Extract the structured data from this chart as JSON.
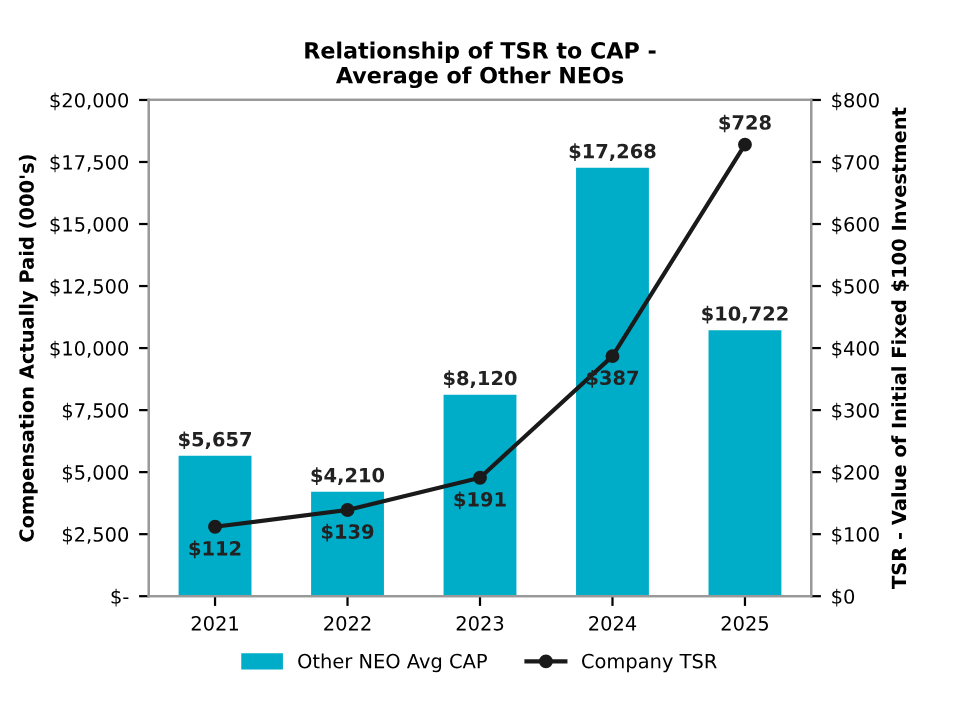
{
  "chart_data": {
    "type": "bar",
    "title": "Relationship of TSR to CAP -\nAverage of Other NEOs",
    "ylabel": "Compensation Actually Paid (000's)",
    "y2label": "TSR - Value of Initial Fixed $100 Investment",
    "categories": [
      "2021",
      "2022",
      "2023",
      "2024",
      "2025"
    ],
    "series": [
      {
        "name": "Other NEO Avg CAP",
        "color": "#00adc9",
        "values": [
          5657,
          4210,
          8120,
          17268,
          10722
        ],
        "value_labels": [
          "$5,657",
          "$4,210",
          "$8,120",
          "$17,268",
          "$10,722"
        ]
      },
      {
        "name": "Company TSR",
        "type": "line",
        "axis": "y2",
        "color": "#1a1a1a",
        "marker": "circle",
        "values": [
          112,
          139,
          191,
          387,
          728
        ],
        "value_labels": [
          "$112",
          "$139",
          "$191",
          "$387",
          "$728"
        ]
      }
    ],
    "ylim": [
      0,
      20000
    ],
    "yticks": [
      {
        "value": 0,
        "label": "$-"
      },
      {
        "value": 2500,
        "label": "$2,500"
      },
      {
        "value": 5000,
        "label": "$5,000"
      },
      {
        "value": 7500,
        "label": "$7,500"
      },
      {
        "value": 10000,
        "label": "$10,000"
      },
      {
        "value": 12500,
        "label": "$12,500"
      },
      {
        "value": 15000,
        "label": "$15,000"
      },
      {
        "value": 17500,
        "label": "$17,500"
      },
      {
        "value": 20000,
        "label": "$20,000"
      }
    ],
    "y2lim": [
      0,
      800
    ],
    "y2ticks": [
      {
        "value": 0,
        "label": "$0"
      },
      {
        "value": 100,
        "label": "$100"
      },
      {
        "value": 200,
        "label": "$200"
      },
      {
        "value": 300,
        "label": "$300"
      },
      {
        "value": 400,
        "label": "$400"
      },
      {
        "value": 500,
        "label": "$500"
      },
      {
        "value": 600,
        "label": "$600"
      },
      {
        "value": 700,
        "label": "$700"
      },
      {
        "value": 800,
        "label": "$800"
      }
    ],
    "grid": false,
    "legend": "bottom"
  }
}
